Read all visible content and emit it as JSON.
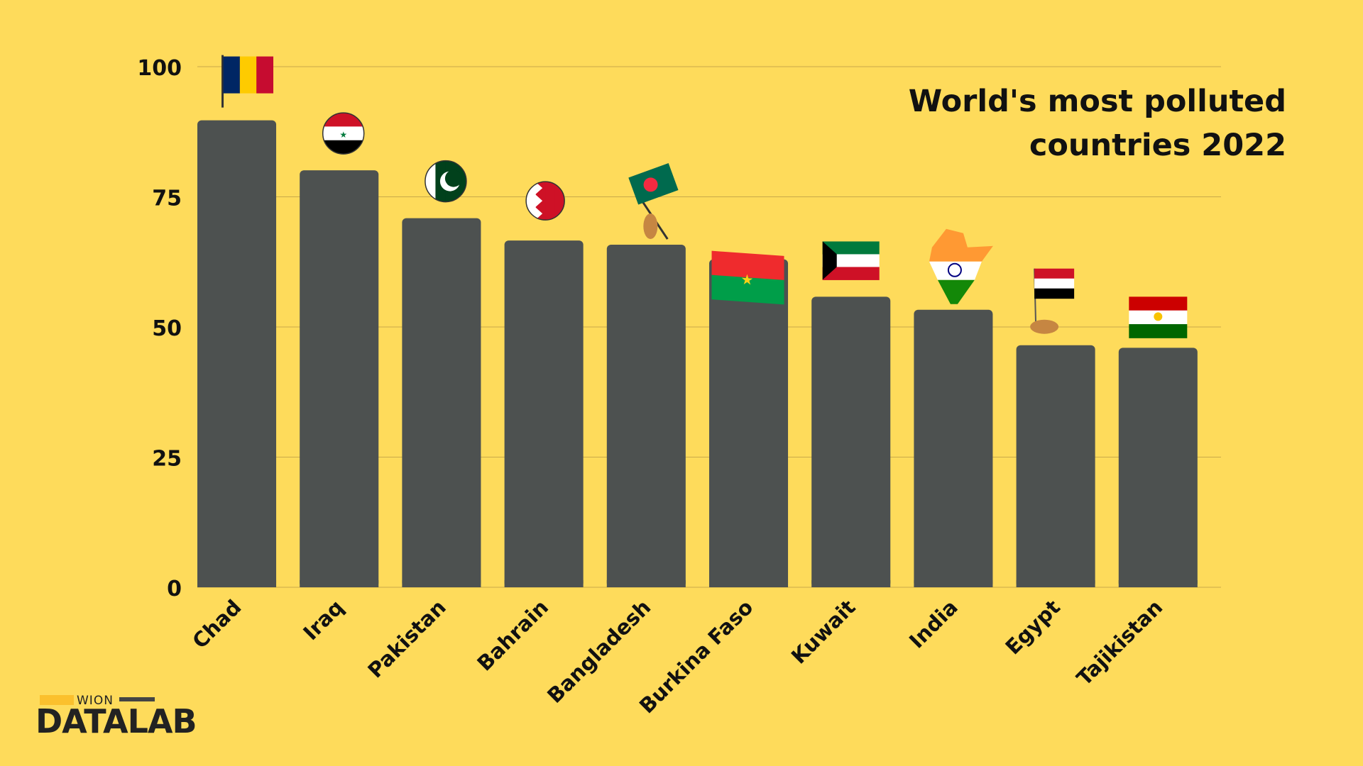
{
  "title_line1": "World's most polluted",
  "title_line2": "countries 2022",
  "logo": {
    "top": "WION",
    "main": "DATALAB"
  },
  "colors": {
    "background": "#FEDB5B",
    "bar": "#4D5150",
    "grid": "#C9A94A",
    "text": "#111111"
  },
  "chart_data": {
    "type": "bar",
    "title": "World's most polluted countries 2022",
    "xlabel": "",
    "ylabel": "",
    "ylim": [
      0,
      100
    ],
    "yticks": [
      0,
      25,
      50,
      75,
      100
    ],
    "grid": true,
    "categories": [
      "Chad",
      "Iraq",
      "Pakistan",
      "Bahrain",
      "Bangladesh",
      "Burkina Faso",
      "Kuwait",
      "India",
      "Egypt",
      "Tajikistan"
    ],
    "values": [
      89.7,
      80.1,
      70.9,
      66.6,
      65.8,
      63.0,
      55.8,
      53.3,
      46.5,
      46.0
    ],
    "flag_icons": [
      "chad-flag-icon",
      "iraq-flag-icon",
      "pakistan-flag-icon",
      "bahrain-flag-icon",
      "bangladesh-flag-icon",
      "burkina-faso-flag-icon",
      "kuwait-flag-icon",
      "india-flag-icon",
      "egypt-flag-icon",
      "tajikistan-flag-icon"
    ]
  }
}
